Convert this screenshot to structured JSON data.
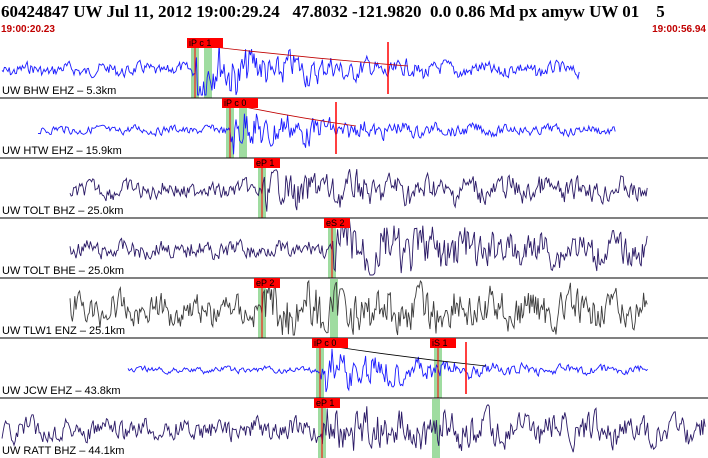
{
  "header": {
    "title": "60424847 UW Jul 11, 2012 19:00:29.24   47.8032 -121.9820  0.0 0.86 Md px amyw UW 01    5",
    "start_time": "19:00:20.23",
    "end_time": "19:00:56.94"
  },
  "colors": {
    "blue_trace": "#1a1aff",
    "purple_trace": "#2b1a66",
    "gray_trace": "#3c3c3c",
    "pick_label_bg": "#ff0000",
    "pick_window": "#9fdca0",
    "coda_curve": "#c00000",
    "divider": "#000000"
  },
  "traces": [
    {
      "station": "UW BHW EHZ",
      "dist": "5.3km",
      "color": "blue",
      "picks": [
        {
          "label": "iP c 1",
          "x": 195
        },
        {
          "label": "",
          "x": 208
        }
      ],
      "red_marks": [
        {
          "x": 388
        }
      ],
      "coda": true
    },
    {
      "station": "UW HTW EHZ",
      "dist": "15.9km",
      "color": "blue",
      "picks": [
        {
          "label": "iP c 0",
          "x": 230
        },
        {
          "label": "",
          "x": 243
        }
      ],
      "red_marks": [
        {
          "x": 336
        }
      ],
      "coda": true
    },
    {
      "station": "UW TOLT BHZ",
      "dist": "25.0km",
      "color": "purple",
      "picks": [
        {
          "label": "eP 1",
          "x": 262
        }
      ],
      "red_marks": [],
      "coda": false
    },
    {
      "station": "UW TOLT BHE",
      "dist": "25.0km",
      "color": "purple",
      "picks": [
        {
          "label": "eS 2",
          "x": 332
        }
      ],
      "red_marks": [],
      "coda": false
    },
    {
      "station": "UW TLW1 ENZ",
      "dist": "25.1km",
      "color": "gray",
      "picks": [
        {
          "label": "eP 2",
          "x": 262
        },
        {
          "label": "",
          "x": 334
        }
      ],
      "red_marks": [],
      "coda": false
    },
    {
      "station": "UW JCW EHZ",
      "dist": "43.8km",
      "color": "blue",
      "picks": [
        {
          "label": "iP c 0",
          "x": 320
        },
        {
          "label": "iS 1",
          "x": 438
        }
      ],
      "red_marks": [
        {
          "x": 466
        }
      ],
      "coda": true
    },
    {
      "station": "UW RATT BHZ",
      "dist": "44.1km",
      "color": "purple",
      "picks": [
        {
          "label": "eP 1",
          "x": 322
        },
        {
          "label": "",
          "x": 436
        }
      ],
      "red_marks": [],
      "coda": false
    }
  ]
}
